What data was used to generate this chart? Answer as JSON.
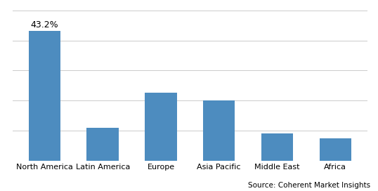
{
  "categories": [
    "North America",
    "Latin America",
    "Europe",
    "Asia Pacific",
    "Middle East",
    "Africa"
  ],
  "values": [
    43.2,
    11.0,
    22.5,
    20.0,
    9.0,
    7.5
  ],
  "bar_color": "#4d8cbf",
  "annotation_label": "43.2%",
  "annotation_fontsize": 9,
  "bar_width": 0.55,
  "ylim": [
    0,
    50
  ],
  "yticks": [
    0,
    10,
    20,
    30,
    40,
    50
  ],
  "grid_color": "#cccccc",
  "background_color": "#ffffff",
  "source_text": "Source: Coherent Market Insights",
  "source_fontsize": 7.5,
  "tick_fontsize": 8,
  "figure_width": 5.38,
  "figure_height": 2.72,
  "dpi": 100
}
